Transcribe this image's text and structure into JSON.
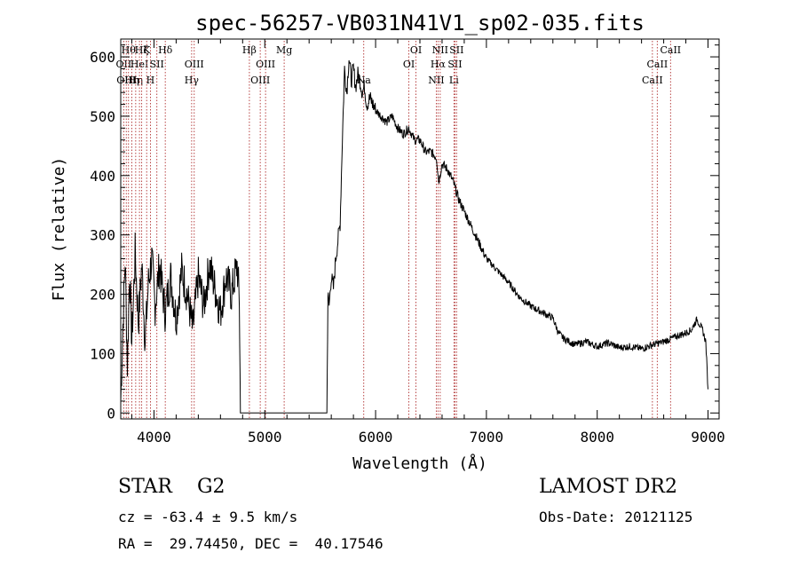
{
  "chart_data": {
    "type": "line",
    "title": "spec-56257-VB031N41V1_sp02-035.fits",
    "xlabel": "Wavelength (Å)",
    "ylabel": "Flux (relative)",
    "xlim": [
      3700,
      9100
    ],
    "ylim": [
      -10,
      630
    ],
    "x_ticks": [
      4000,
      5000,
      6000,
      7000,
      8000,
      9000
    ],
    "x_tick_labels": [
      "4000",
      "5000",
      "6000",
      "7000",
      "8000",
      "9000"
    ],
    "y_ticks": [
      0,
      100,
      200,
      300,
      400,
      500,
      600
    ],
    "y_tick_labels": [
      "0",
      "100",
      "200",
      "300",
      "400",
      "500",
      "600"
    ],
    "grid": false,
    "line_color": "#000000",
    "marker_color": "#b03030",
    "series": [
      {
        "x": [
          3700,
          3720,
          3740,
          3760,
          3780,
          3800,
          3830,
          3860,
          3890,
          3920,
          3950,
          3980,
          4010,
          4050,
          4100,
          4150,
          4200,
          4250,
          4300,
          4350,
          4400,
          4450,
          4500,
          4550,
          4600,
          4650,
          4700,
          4750,
          4770,
          4780,
          4800,
          5000,
          5200,
          5400,
          5560,
          5570,
          5580,
          5600,
          5620,
          5640,
          5660,
          5680,
          5700,
          5720,
          5740,
          5760,
          5780,
          5800,
          5820,
          5840,
          5860,
          5880,
          5900,
          5920,
          5950,
          6000,
          6050,
          6100,
          6150,
          6200,
          6250,
          6300,
          6350,
          6400,
          6450,
          6500,
          6550,
          6570,
          6600,
          6650,
          6700,
          6750,
          6800,
          6850,
          6900,
          6950,
          7000,
          7100,
          7200,
          7300,
          7400,
          7500,
          7600,
          7650,
          7700,
          7800,
          7900,
          8000,
          8100,
          8200,
          8300,
          8400,
          8500,
          8600,
          8700,
          8800,
          8850,
          8900,
          8950,
          8980,
          9000
        ],
        "y": [
          20,
          150,
          260,
          80,
          240,
          120,
          270,
          150,
          250,
          120,
          220,
          260,
          180,
          250,
          170,
          230,
          160,
          240,
          200,
          140,
          230,
          180,
          250,
          210,
          170,
          230,
          200,
          250,
          190,
          0,
          0,
          0,
          0,
          0,
          0,
          200,
          180,
          230,
          210,
          260,
          290,
          320,
          460,
          580,
          540,
          600,
          560,
          580,
          550,
          570,
          560,
          540,
          550,
          520,
          530,
          510,
          500,
          490,
          500,
          480,
          470,
          480,
          460,
          460,
          440,
          440,
          430,
          390,
          420,
          410,
          390,
          360,
          340,
          320,
          300,
          280,
          260,
          240,
          220,
          195,
          180,
          170,
          160,
          135,
          125,
          115,
          120,
          112,
          118,
          110,
          112,
          108,
          115,
          120,
          128,
          135,
          140,
          158,
          140,
          120,
          40
        ]
      }
    ],
    "lines": [
      {
        "x": 3727,
        "label": "OII",
        "row": 2
      },
      {
        "x": 3750,
        "label": "OIII",
        "row": 3
      },
      {
        "x": 3770,
        "label": "Hθ",
        "row": 1
      },
      {
        "x": 3800,
        "label": "Hη",
        "row": 3
      },
      {
        "x": 3835,
        "label": "Hη",
        "row": 3
      },
      {
        "x": 3869,
        "label": "HeI",
        "row": 2
      },
      {
        "x": 3889,
        "label": "Hζ",
        "row": 1
      },
      {
        "x": 3934,
        "label": "K",
        "row": 1
      },
      {
        "x": 3968,
        "label": "H",
        "row": 3
      },
      {
        "x": 4026,
        "label": "SII",
        "row": 2
      },
      {
        "x": 4102,
        "label": "Hδ",
        "row": 1
      },
      {
        "x": 4340,
        "label": "Hγ",
        "row": 3
      },
      {
        "x": 4363,
        "label": "OIII",
        "row": 2
      },
      {
        "x": 4861,
        "label": "Hβ",
        "row": 1
      },
      {
        "x": 4959,
        "label": "OIII",
        "row": 3
      },
      {
        "x": 5007,
        "label": "OIII",
        "row": 2
      },
      {
        "x": 5175,
        "label": "Mg",
        "row": 1
      },
      {
        "x": 5893,
        "label": "Na",
        "row": 3
      },
      {
        "x": 6300,
        "label": "OI",
        "row": 2
      },
      {
        "x": 6364,
        "label": "OI",
        "row": 1
      },
      {
        "x": 6548,
        "label": "NII",
        "row": 3
      },
      {
        "x": 6563,
        "label": "Hα",
        "row": 2
      },
      {
        "x": 6583,
        "label": "NII",
        "row": 1
      },
      {
        "x": 6707,
        "label": "Li",
        "row": 3
      },
      {
        "x": 6716,
        "label": "SII",
        "row": 2
      },
      {
        "x": 6731,
        "label": "SII",
        "row": 1
      },
      {
        "x": 8498,
        "label": "CaII",
        "row": 3
      },
      {
        "x": 8542,
        "label": "CaII",
        "row": 2
      },
      {
        "x": 8662,
        "label": "CaII",
        "row": 1
      }
    ]
  },
  "info": {
    "classification": "STAR    G2",
    "survey": "LAMOST DR2",
    "redshift": "cz = -63.4 ± 9.5 km/s",
    "obs_date": "Obs-Date: 20121125",
    "coords": "RA =  29.74450, DEC =  40.17546"
  }
}
